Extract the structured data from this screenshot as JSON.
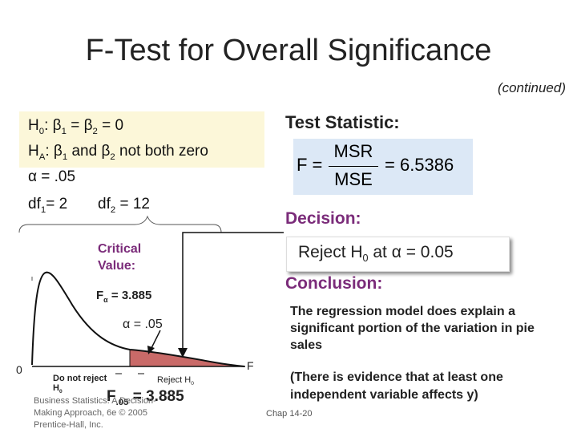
{
  "title": "F-Test for Overall Significance",
  "continued": "(continued)",
  "hypotheses": {
    "h0_lead": "H",
    "h0_sub": "0",
    "h0_rest": ": β",
    "h0_b1": "1",
    "h0_eq": " = β",
    "h0_b2": "2",
    "h0_tail": " = 0",
    "ha_lead": "H",
    "ha_sub": "A",
    "ha_rest": ": β",
    "ha_b1": "1",
    "ha_mid": " and β",
    "ha_b2": "2",
    "ha_tail": " not both zero",
    "alpha_line": "α = .05",
    "df1_lead": "df",
    "df1_sub": "1",
    "df1_tail": "= 2",
    "df2_lead": "df",
    "df2_sub": "2",
    "df2_tail": " = 12"
  },
  "test_statistic": {
    "label": "Test Statistic:",
    "lhs": "F =",
    "numerator": "MSR",
    "denominator": "MSE",
    "rhs": "= 6.5386"
  },
  "decision": {
    "label": "Decision:",
    "reject_lead": "Reject H",
    "reject_sub": "0",
    "reject_tail": " at  α = 0.05"
  },
  "conclusion": {
    "label": "Conclusion:",
    "text": "The regression model does explain a significant portion of the variation in pie sales",
    "evidence": "(There is evidence that at least one independent variable affects y)"
  },
  "diagram": {
    "critical_value": "Critical Value:",
    "f_alpha": "F",
    "f_alpha_sub": "α",
    "f_alpha_val": " = 3.885",
    "alpha_label": "α = .05",
    "zero": "0",
    "f_axis": "F",
    "do_not_reject": "Do not reject H",
    "do_not_reject_sub": "0",
    "reject_region": "Reject H",
    "reject_region_sub": "0",
    "fcrit_lead": "F",
    "fcrit_sub": ".05",
    "fcrit_tail": " = 3.885",
    "colors": {
      "curve": "#111111",
      "reject_fill": "#c0504d",
      "arrow": "#111111"
    }
  },
  "footer": {
    "source": "Business Statistics: A Decision-Making Approach, 6e © 2005 Prentice-Hall, Inc.",
    "chapter": "Chap 14-20"
  }
}
